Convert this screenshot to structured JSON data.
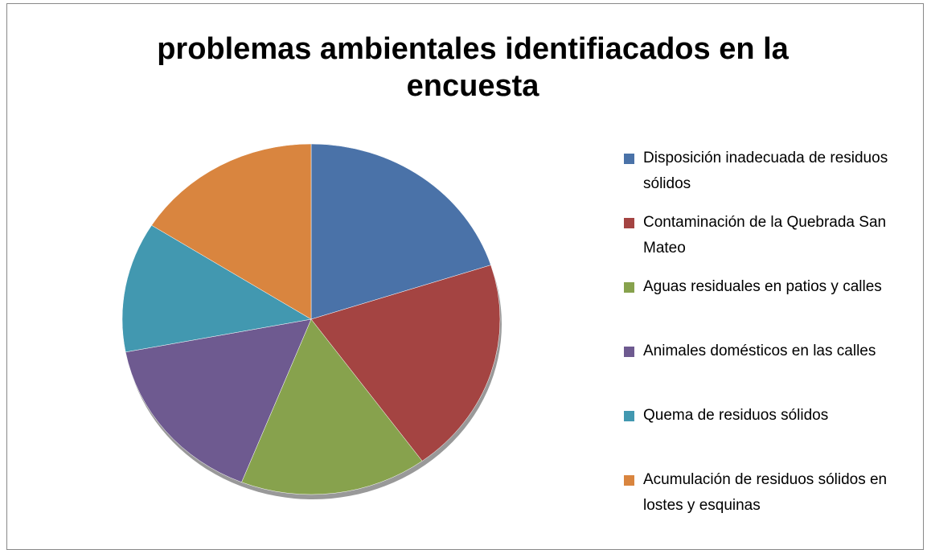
{
  "chart_data": {
    "type": "pie",
    "title": "problemas ambientales identifiacados en la encuesta",
    "categories": [
      "Disposición inadecuada de residuos sólidos",
      "Contaminación de la Quebrada San Mateo",
      "Aguas residuales en patios y calles",
      "Animales domésticos en las calles",
      "Quema de residuos sólidos",
      "Acumulación de residuos sólidos en lostes y esquinas"
    ],
    "values": [
      20,
      20,
      16,
      16,
      12,
      16
    ],
    "colors": [
      "#4a72a8",
      "#a44442",
      "#87a24d",
      "#6e5a90",
      "#4298b0",
      "#d9853f"
    ],
    "legend": "right"
  }
}
